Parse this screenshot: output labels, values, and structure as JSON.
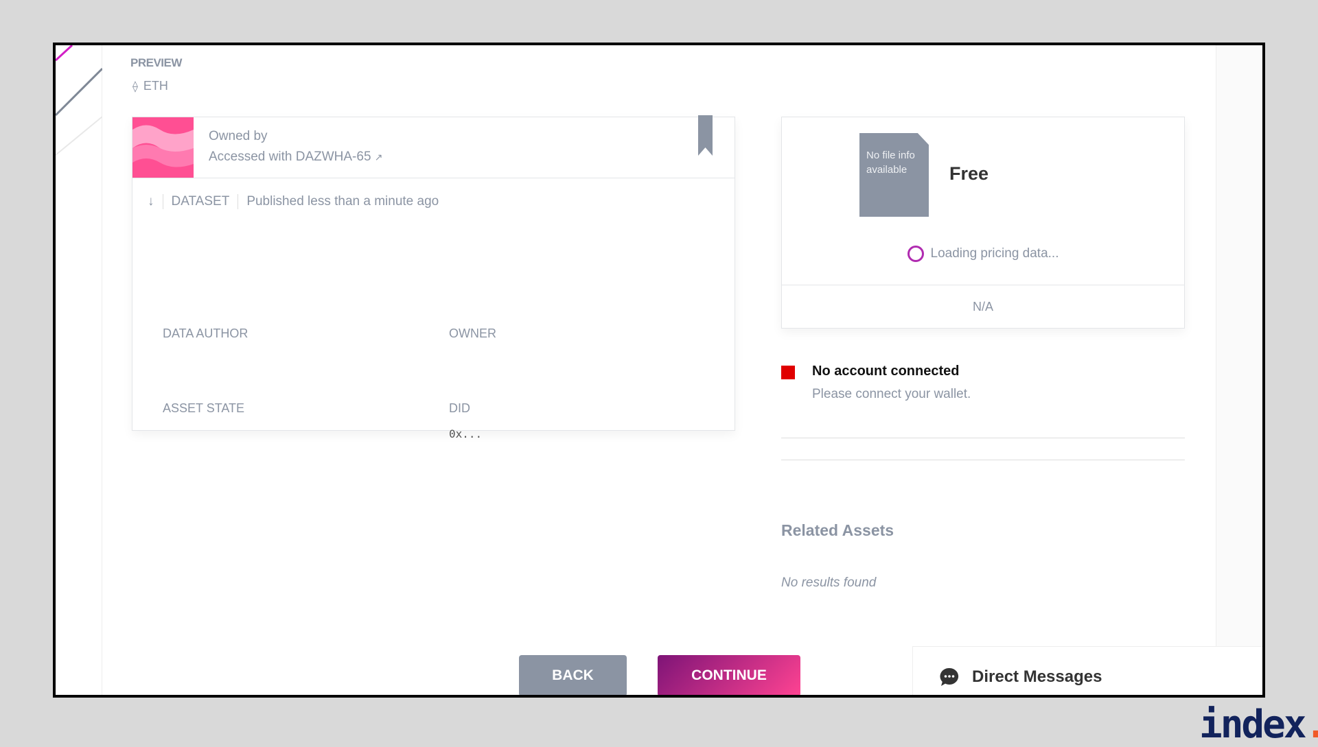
{
  "preview_label": "PREVIEW",
  "network": "ETH",
  "asset": {
    "owned_by": "Owned by",
    "accessed_with": "Accessed with DAZWHA-65",
    "type": "DATASET",
    "published": "Published less than a minute ago",
    "fields": [
      {
        "label": "DATA AUTHOR",
        "value": ""
      },
      {
        "label": "OWNER",
        "value": ""
      },
      {
        "label": "ASSET STATE",
        "value": ""
      },
      {
        "label": "DID",
        "value": "0x..."
      }
    ]
  },
  "pricing": {
    "file_info": "No file info available",
    "price": "Free",
    "loading": "Loading pricing data...",
    "na": "N/A"
  },
  "wallet": {
    "title": "No account connected",
    "subtitle": "Please connect your wallet.",
    "status_color": "#e00000"
  },
  "related": {
    "title": "Related Assets",
    "empty": "No results found"
  },
  "buttons": {
    "back": "BACK",
    "continue": "CONTINUE"
  },
  "dm": {
    "label": "Direct Messages"
  },
  "logo": "index."
}
